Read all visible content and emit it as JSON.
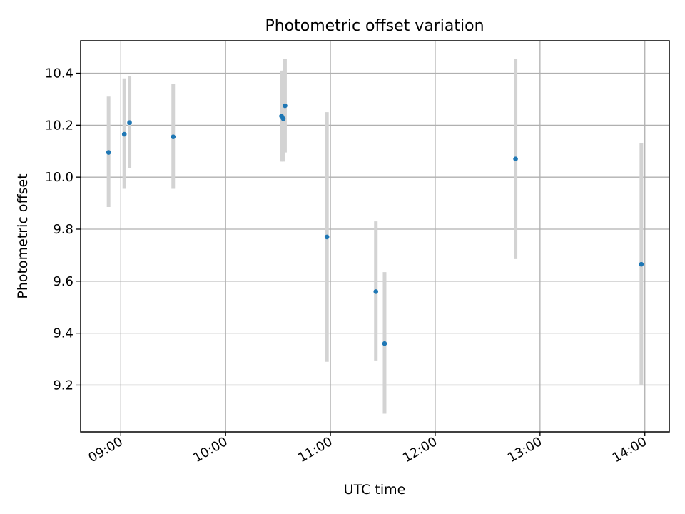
{
  "chart_data": {
    "type": "scatter",
    "title": "Photometric offset variation",
    "xlabel": "UTC time",
    "ylabel": "Photometric offset",
    "xlim": [
      "08:37",
      "14:14"
    ],
    "ylim": [
      9.02,
      10.525
    ],
    "x_ticks": [
      "09:00",
      "10:00",
      "11:00",
      "12:00",
      "13:00",
      "14:00"
    ],
    "y_ticks": [
      9.2,
      9.4,
      9.6,
      9.8,
      10.0,
      10.2,
      10.4
    ],
    "grid": true,
    "colors": {
      "marker": "#1f77b4",
      "errorbar": "#d3d3d3"
    },
    "series": [
      {
        "points": [
          {
            "x": "08:53",
            "y": 10.095,
            "yerr_low": 9.885,
            "yerr_high": 10.31
          },
          {
            "x": "09:02",
            "y": 10.165,
            "yerr_low": 9.955,
            "yerr_high": 10.38
          },
          {
            "x": "09:05",
            "y": 10.21,
            "yerr_low": 10.035,
            "yerr_high": 10.39
          },
          {
            "x": "09:30",
            "y": 10.155,
            "yerr_low": 9.955,
            "yerr_high": 10.36
          },
          {
            "x": "10:32",
            "y": 10.235,
            "yerr_low": 10.06,
            "yerr_high": 10.41
          },
          {
            "x": "10:33",
            "y": 10.225,
            "yerr_low": 10.06,
            "yerr_high": 10.41
          },
          {
            "x": "10:34",
            "y": 10.275,
            "yerr_low": 10.095,
            "yerr_high": 10.455
          },
          {
            "x": "10:58",
            "y": 9.77,
            "yerr_low": 9.29,
            "yerr_high": 10.25
          },
          {
            "x": "11:26",
            "y": 9.56,
            "yerr_low": 9.295,
            "yerr_high": 9.83
          },
          {
            "x": "11:31",
            "y": 9.36,
            "yerr_low": 9.09,
            "yerr_high": 9.635
          },
          {
            "x": "12:46",
            "y": 10.07,
            "yerr_low": 9.685,
            "yerr_high": 10.455
          },
          {
            "x": "13:58",
            "y": 9.665,
            "yerr_low": 9.2,
            "yerr_high": 10.13
          }
        ]
      }
    ]
  }
}
